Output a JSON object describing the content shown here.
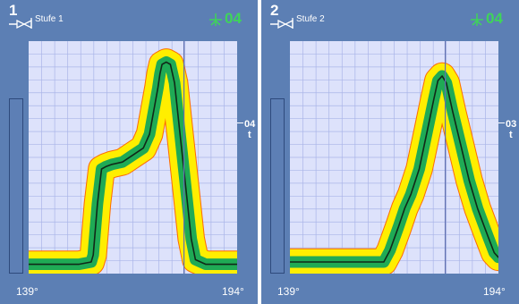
{
  "panels": [
    {
      "number": "1",
      "stage_label": "Stufe 1",
      "counter": "04",
      "side_value": "04",
      "side_unit": "t",
      "x_start_label": "139°",
      "x_end_label": "194°",
      "curve": [
        [
          0,
          96
        ],
        [
          24,
          96
        ],
        [
          30,
          95
        ],
        [
          31,
          92
        ],
        [
          33,
          70
        ],
        [
          35,
          55
        ],
        [
          37,
          54
        ],
        [
          40,
          53
        ],
        [
          45,
          52
        ],
        [
          50,
          49
        ],
        [
          55,
          46
        ],
        [
          58,
          40
        ],
        [
          60,
          30
        ],
        [
          62,
          20
        ],
        [
          63,
          14
        ],
        [
          64,
          10
        ],
        [
          66,
          9
        ],
        [
          68,
          10
        ],
        [
          70,
          18
        ],
        [
          72,
          35
        ],
        [
          75,
          60
        ],
        [
          78,
          85
        ],
        [
          80,
          94
        ],
        [
          85,
          96
        ],
        [
          100,
          96
        ]
      ],
      "band_inner": 2.5,
      "band_mid": 4,
      "band_outer": 5.5
    },
    {
      "number": "2",
      "stage_label": "Stufe 2",
      "counter": "04",
      "side_value": "03",
      "side_unit": "t",
      "x_start_label": "139°",
      "x_end_label": "194°",
      "curve": [
        [
          0,
          95
        ],
        [
          20,
          95
        ],
        [
          45,
          95
        ],
        [
          48,
          90
        ],
        [
          52,
          80
        ],
        [
          55,
          72
        ],
        [
          58,
          66
        ],
        [
          62,
          55
        ],
        [
          66,
          38
        ],
        [
          69,
          25
        ],
        [
          71,
          17
        ],
        [
          73,
          15
        ],
        [
          75,
          18
        ],
        [
          78,
          30
        ],
        [
          82,
          45
        ],
        [
          86,
          60
        ],
        [
          90,
          72
        ],
        [
          95,
          84
        ],
        [
          98,
          91
        ],
        [
          100,
          93
        ]
      ],
      "band_inner": 2.5,
      "band_mid": 4,
      "band_outer": 5.5
    }
  ],
  "colors": {
    "panel_bg": "#5c7fb4",
    "plot_bg": "#dde2fb",
    "grid": "#aab5e8",
    "cursor": "#6070b0",
    "band_outer": "#ffee00",
    "band_outer_edge": "#ff6a00",
    "band_mid": "#1faa55",
    "line": "#102818",
    "counter": "#3fd45a"
  },
  "cursor_x_fraction": 0.745
}
